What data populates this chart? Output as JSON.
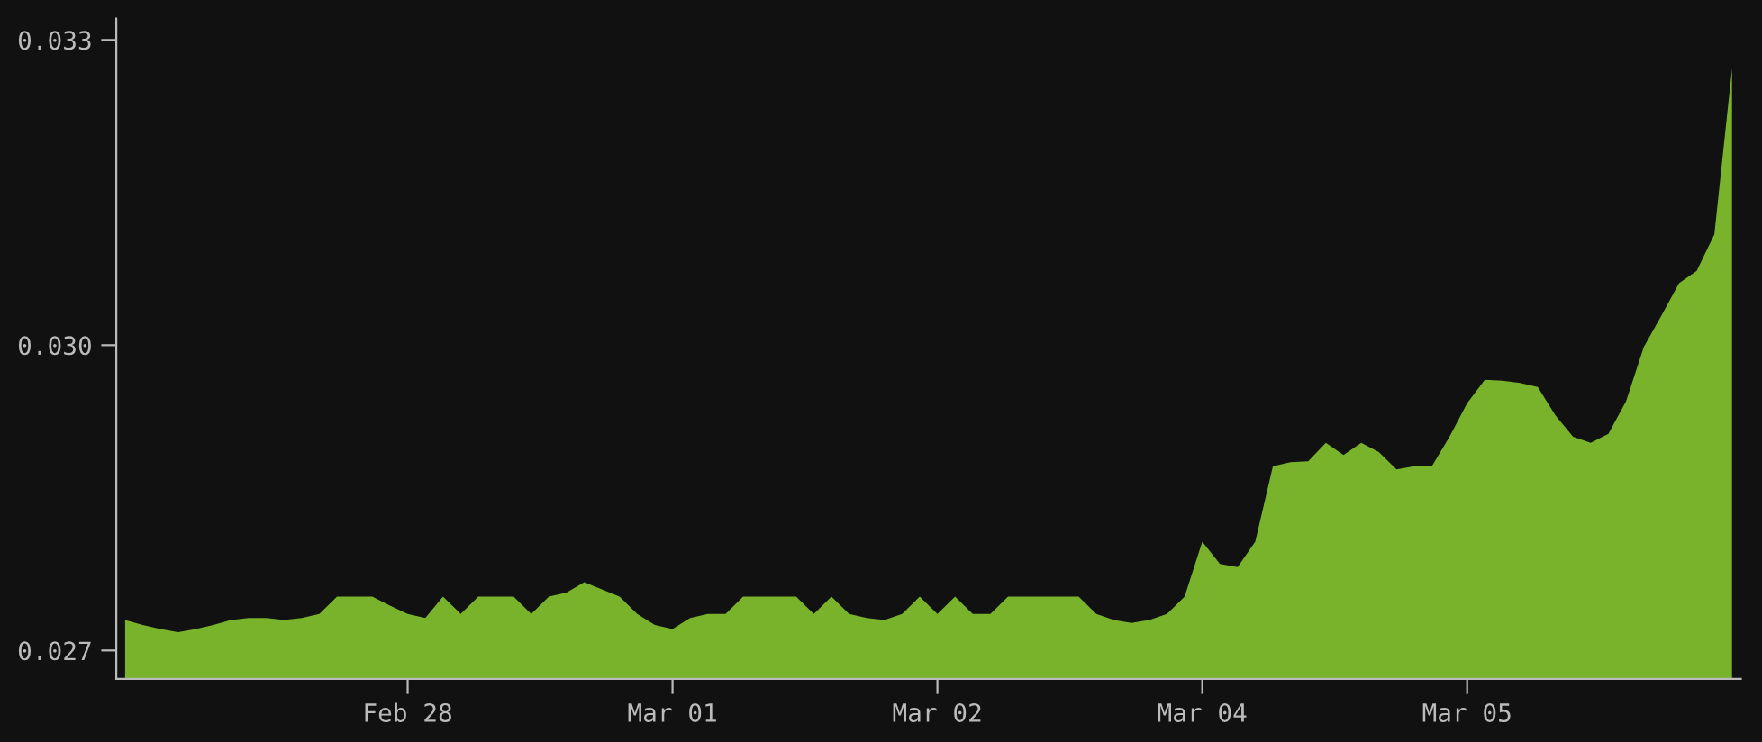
{
  "chart_data": {
    "type": "area",
    "ylim": [
      0.02672,
      0.03321
    ],
    "categories": [
      null,
      null,
      null,
      null,
      null,
      null,
      null,
      null,
      null,
      null,
      null,
      null,
      null,
      null,
      null,
      null,
      "Feb 28",
      null,
      null,
      null,
      null,
      null,
      null,
      null,
      null,
      null,
      null,
      null,
      null,
      null,
      null,
      "Mar 01",
      null,
      null,
      null,
      null,
      null,
      null,
      null,
      null,
      null,
      null,
      null,
      null,
      null,
      null,
      "Mar 02",
      null,
      null,
      null,
      null,
      null,
      null,
      null,
      null,
      null,
      null,
      null,
      null,
      null,
      null,
      "Mar 04",
      null,
      null,
      null,
      null,
      null,
      null,
      null,
      null,
      null,
      null,
      null,
      null,
      null,
      null,
      "Mar 05",
      null,
      null,
      null,
      null,
      null,
      null,
      null,
      null,
      null,
      null,
      null,
      null,
      null,
      null,
      null
    ],
    "yticks": [
      {
        "value": 0.027,
        "label": "0.027"
      },
      {
        "value": 0.03,
        "label": "0.030"
      },
      {
        "value": 0.033,
        "label": "0.033"
      }
    ],
    "series": [
      {
        "color": "#79b32c",
        "values": [
          0.0273,
          0.02725,
          0.02721,
          0.02718,
          0.02721,
          0.02725,
          0.0273,
          0.02732,
          0.02732,
          0.0273,
          0.02732,
          0.02736,
          0.02753,
          0.02753,
          0.02753,
          0.02744,
          0.02736,
          0.02732,
          0.02753,
          0.02736,
          0.02753,
          0.02753,
          0.02753,
          0.02736,
          0.02753,
          0.02757,
          0.02767,
          0.0276,
          0.02753,
          0.02736,
          0.02725,
          0.02721,
          0.02732,
          0.02736,
          0.02736,
          0.02753,
          0.02753,
          0.02753,
          0.02753,
          0.02736,
          0.02753,
          0.02736,
          0.02732,
          0.0273,
          0.02736,
          0.02753,
          0.02736,
          0.02753,
          0.02736,
          0.02736,
          0.02753,
          0.02753,
          0.02753,
          0.02753,
          0.02753,
          0.02736,
          0.0273,
          0.02727,
          0.0273,
          0.02736,
          0.02753,
          0.02807,
          0.02785,
          0.02782,
          0.02807,
          0.02881,
          0.02885,
          0.02886,
          0.02904,
          0.02892,
          0.02904,
          0.02895,
          0.02878,
          0.02881,
          0.02881,
          0.0291,
          0.02943,
          0.02966,
          0.02965,
          0.02963,
          0.02959,
          0.02931,
          0.0291,
          0.02904,
          0.02913,
          0.02945,
          0.02998,
          0.03029,
          0.03061,
          0.03073,
          0.03109,
          0.03272
        ]
      }
    ]
  }
}
